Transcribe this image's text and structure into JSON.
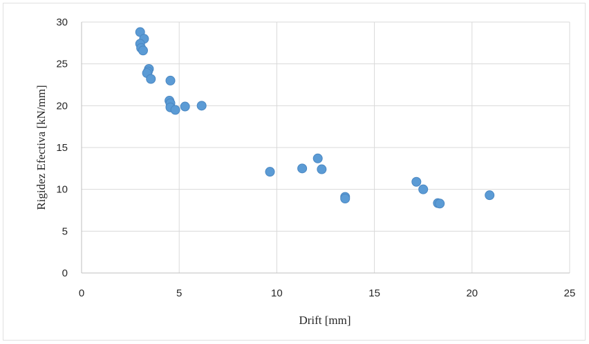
{
  "chart_data": {
    "type": "scatter",
    "xlabel": "Drift [mm]",
    "ylabel": "Rigidez Efectiva [kN/mm]",
    "xlim": [
      0,
      25
    ],
    "ylim": [
      0,
      30
    ],
    "xticks": [
      0,
      5,
      10,
      15,
      20,
      25
    ],
    "yticks": [
      0,
      5,
      10,
      15,
      20,
      25,
      30
    ],
    "xtick_labels": [
      "0",
      "5",
      "10",
      "15",
      "20",
      "25"
    ],
    "ytick_labels": [
      "0",
      "5",
      "10",
      "15",
      "20",
      "25",
      "30"
    ],
    "grid": true,
    "legend": "none",
    "marker_color": "#5b9bd5",
    "marker_edge_color": "#4a87c2",
    "series": [
      {
        "points": [
          [
            3.0,
            28.8
          ],
          [
            3.2,
            28.0
          ],
          [
            3.0,
            27.4
          ],
          [
            3.05,
            26.9
          ],
          [
            3.15,
            26.6
          ],
          [
            3.45,
            24.4
          ],
          [
            3.4,
            24.1
          ],
          [
            3.35,
            23.9
          ],
          [
            3.55,
            23.2
          ],
          [
            4.55,
            23.0
          ],
          [
            4.5,
            20.6
          ],
          [
            4.55,
            20.3
          ],
          [
            4.55,
            19.8
          ],
          [
            4.8,
            19.5
          ],
          [
            5.3,
            19.9
          ],
          [
            6.15,
            20.0
          ],
          [
            9.65,
            12.1
          ],
          [
            11.3,
            12.5
          ],
          [
            12.1,
            13.7
          ],
          [
            12.3,
            12.4
          ],
          [
            13.5,
            9.1
          ],
          [
            13.5,
            8.9
          ],
          [
            17.15,
            10.9
          ],
          [
            17.5,
            10.0
          ],
          [
            18.25,
            8.35
          ],
          [
            18.35,
            8.3
          ],
          [
            20.9,
            9.3
          ]
        ]
      }
    ]
  }
}
